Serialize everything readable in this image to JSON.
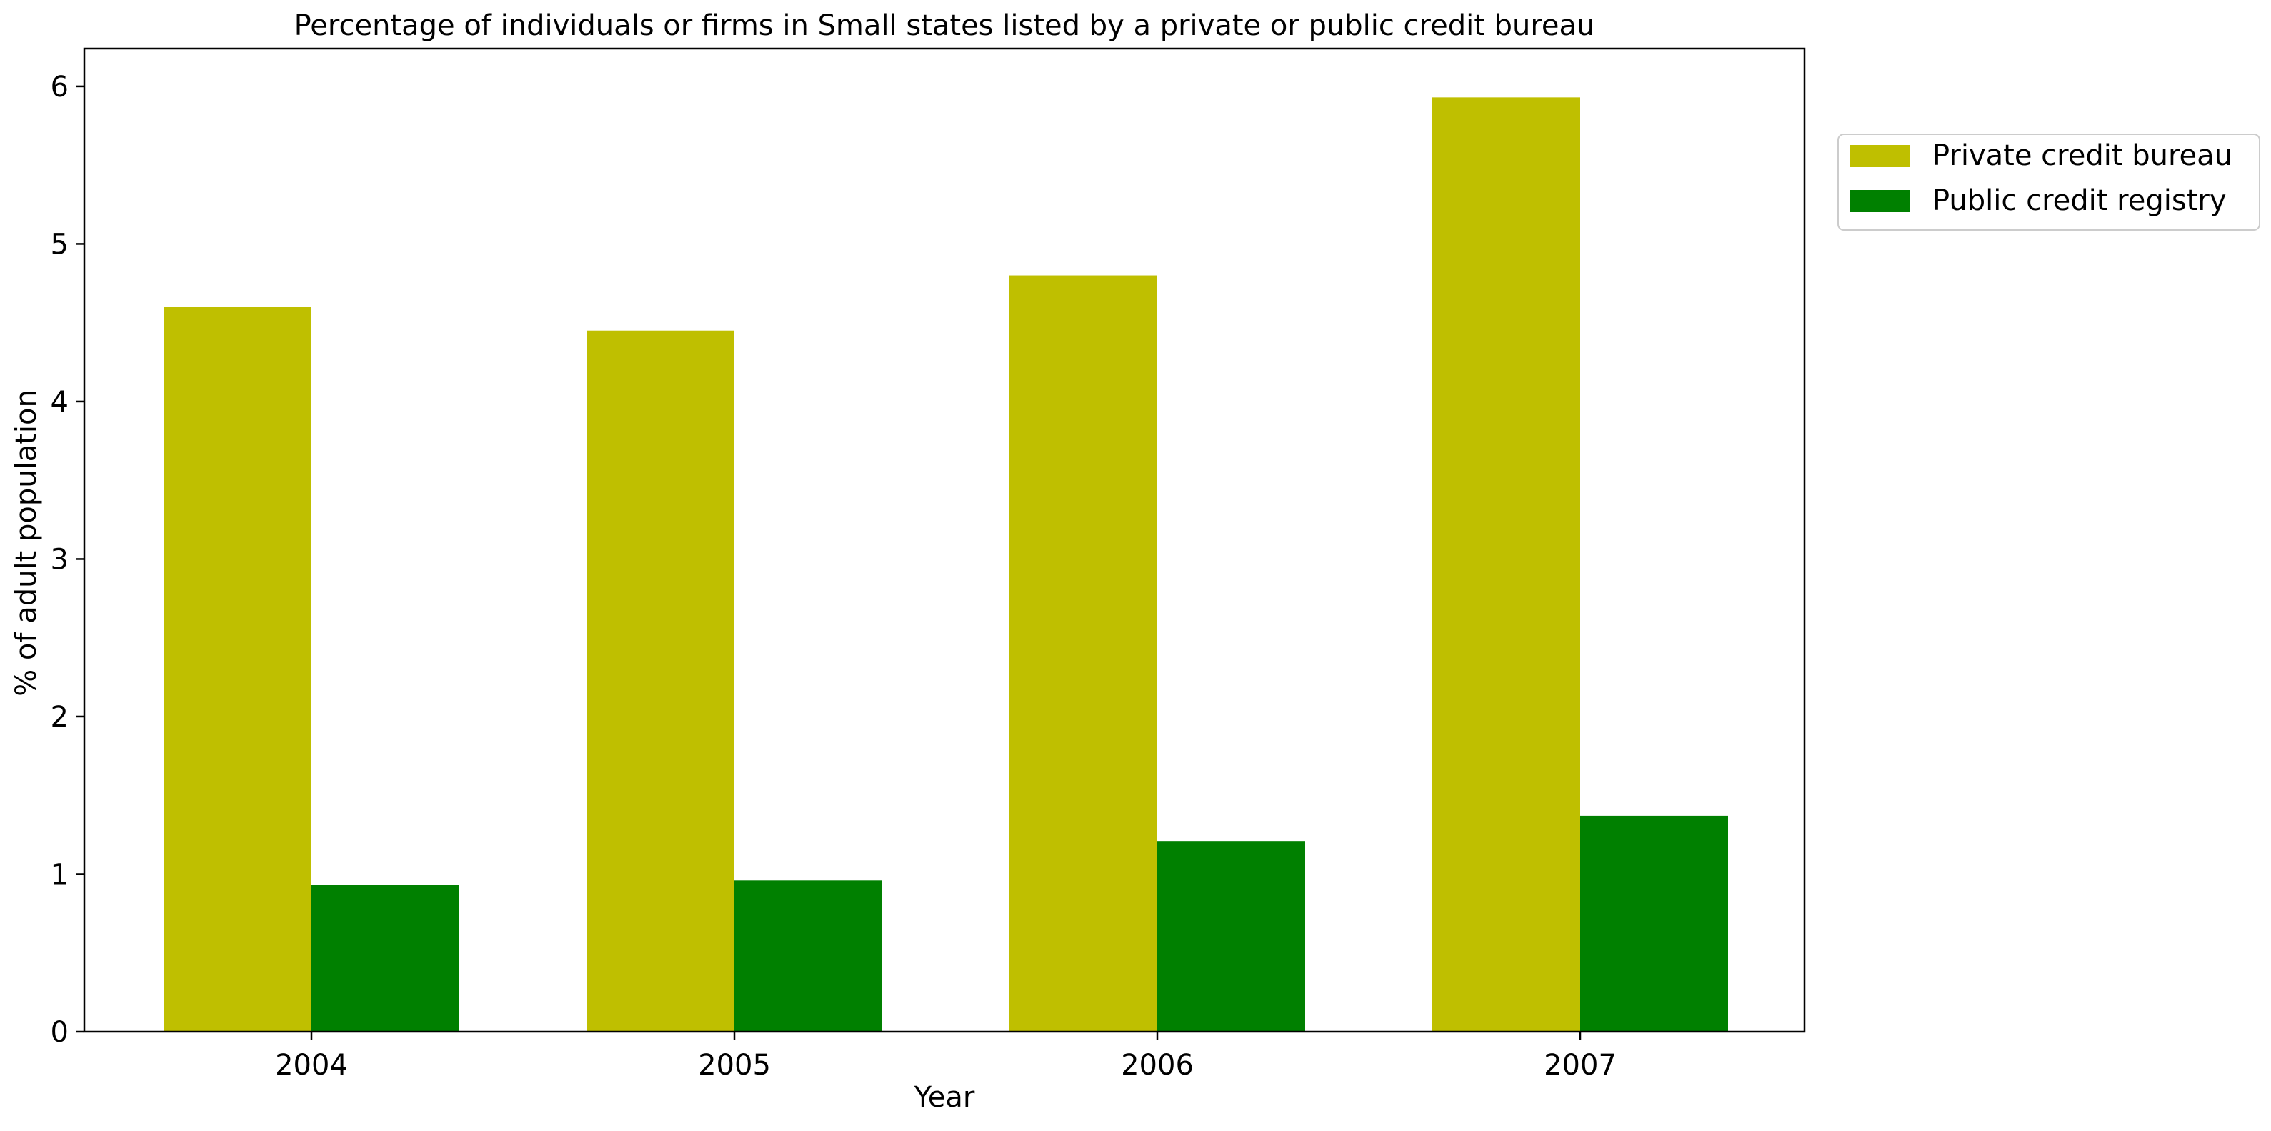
{
  "chart_data": {
    "type": "bar",
    "title": "Percentage of individuals or firms in Small states listed by a private or public credit bureau",
    "xlabel": "Year",
    "ylabel": "% of adult population",
    "categories": [
      "2004",
      "2005",
      "2006",
      "2007"
    ],
    "series": [
      {
        "name": "Private credit bureau",
        "color": "#bfbf00",
        "values": [
          4.6,
          4.45,
          4.8,
          5.93
        ]
      },
      {
        "name": "Public credit registry",
        "color": "#008000",
        "values": [
          0.93,
          0.96,
          1.21,
          1.37
        ]
      }
    ],
    "ylim": [
      0,
      6.24
    ],
    "yticks": [
      0,
      1,
      2,
      3,
      4,
      5,
      6
    ],
    "grid": false,
    "legend_position": "outside-top-right"
  }
}
